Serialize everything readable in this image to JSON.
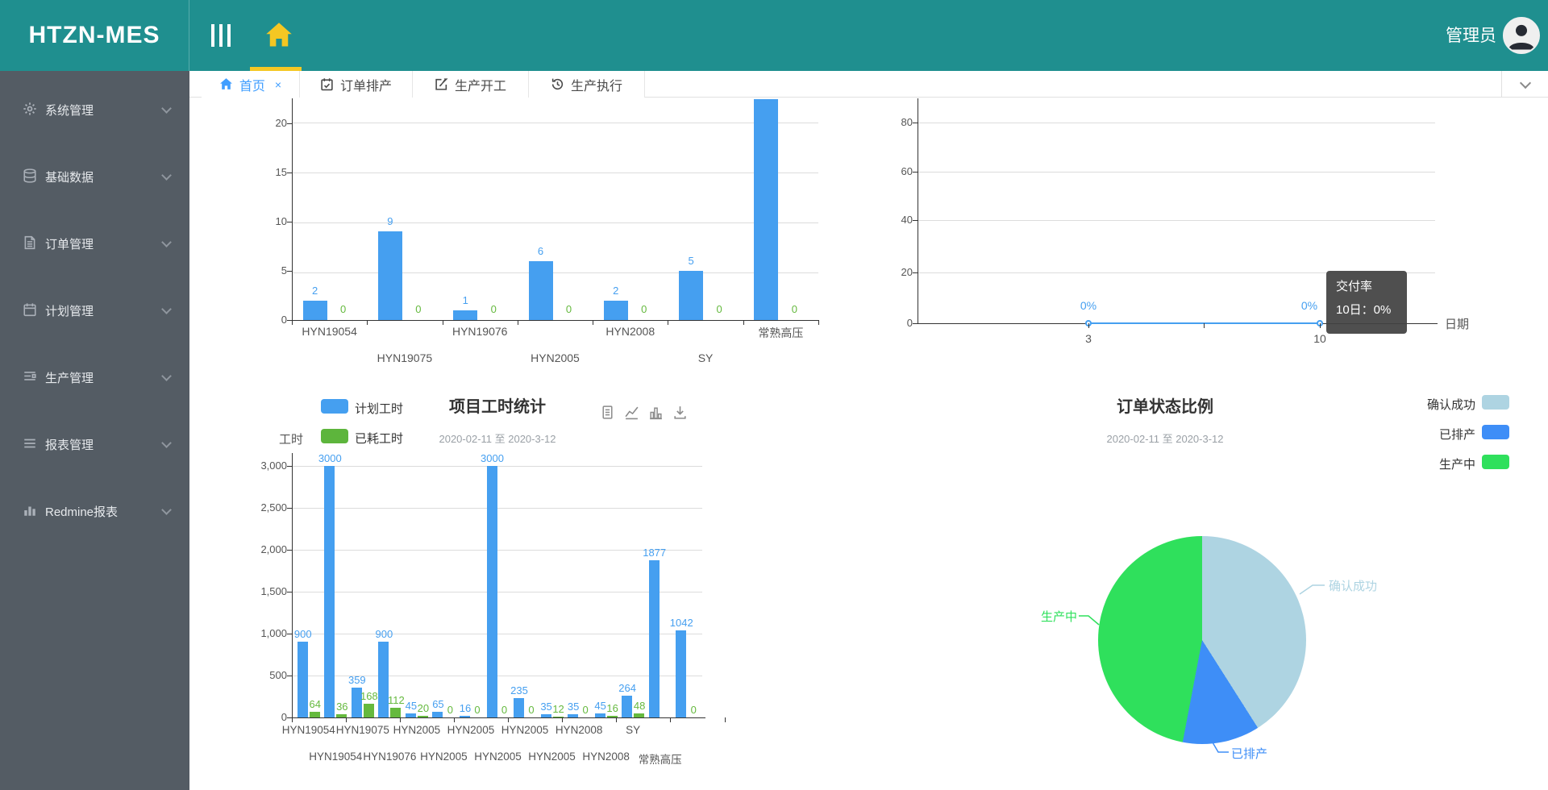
{
  "header": {
    "logo": "HTZN-MES",
    "user_name": "管理员"
  },
  "sidebar": {
    "items": [
      {
        "label": "系统管理",
        "icon": "gear-icon"
      },
      {
        "label": "基础数据",
        "icon": "database-icon"
      },
      {
        "label": "订单管理",
        "icon": "document-icon"
      },
      {
        "label": "计划管理",
        "icon": "calendar-icon"
      },
      {
        "label": "生产管理",
        "icon": "production-list-icon"
      },
      {
        "label": "报表管理",
        "icon": "report-lines-icon"
      },
      {
        "label": "Redmine报表",
        "icon": "bar-chart-icon"
      }
    ]
  },
  "tabs": {
    "close_label": "×",
    "items": [
      {
        "label": "首页",
        "active": true,
        "closable": true,
        "icon": "home-icon"
      },
      {
        "label": "订单排产",
        "icon": "calendar-check-icon"
      },
      {
        "label": "生产开工",
        "icon": "edit-icon"
      },
      {
        "label": "生产执行",
        "icon": "history-icon"
      }
    ]
  },
  "chart_data": [
    {
      "id": "project-order-bar",
      "type": "bar",
      "note": "top of plot clipped by scroll; tall last bar value not labeled (estimated)",
      "categories": [
        "HYN19054",
        "HYN19075",
        "HYN19076",
        "HYN2005",
        "HYN2008",
        "SY",
        "常熟高压"
      ],
      "series": [
        {
          "name": "blue",
          "color": "#459ff0",
          "values": [
            2,
            9,
            1,
            6,
            2,
            5,
            22.5
          ],
          "labels": [
            "2",
            "9",
            "1",
            "6",
            "2",
            "5",
            ""
          ]
        },
        {
          "name": "green",
          "color": "#65b93e",
          "values": [
            0,
            0,
            0,
            0,
            0,
            0,
            0
          ],
          "labels": [
            "0",
            "0",
            "0",
            "0",
            "0",
            "0",
            "0"
          ]
        }
      ],
      "yticks": [
        0,
        5,
        10,
        15,
        20
      ],
      "ylim": [
        0,
        20
      ],
      "grid": true
    },
    {
      "id": "delivery-rate-line",
      "type": "line",
      "line_color": "#459ff0",
      "x": [
        "3",
        "10"
      ],
      "values": [
        0,
        0
      ],
      "point_labels": [
        "0%",
        "0%"
      ],
      "yticks": [
        0,
        20,
        40,
        60,
        80
      ],
      "xlabel": "日期",
      "tooltip": {
        "title": "交付率",
        "body": "10日：0%"
      },
      "grid": true
    },
    {
      "id": "project-hours-bar",
      "type": "bar",
      "title": "项目工时统计",
      "subtitle": "2020-02-11 至 2020-3-12",
      "ylabel": "工时",
      "legend": [
        {
          "label": "计划工时",
          "color": "#459ff0"
        },
        {
          "label": "已耗工时",
          "color": "#5db53c"
        }
      ],
      "toolbox": [
        "data-view-icon",
        "line-type-icon",
        "bar-type-icon",
        "download-icon"
      ],
      "yticks": [
        "0",
        "500",
        "1,000",
        "1,500",
        "2,000",
        "2,500",
        "3,000"
      ],
      "ylim": [
        0,
        3000
      ],
      "grid": true,
      "series": [
        {
          "name": "计划工时",
          "color": "#459ff0",
          "values": [
            900,
            3000,
            359,
            900,
            45,
            65,
            16,
            3000,
            235,
            35,
            35,
            45,
            264,
            1877,
            1042
          ],
          "labels": [
            "900",
            "3000",
            "359",
            "900",
            "45",
            "65",
            "16",
            "3000",
            "235",
            "35",
            "35",
            "45",
            "264",
            "1877",
            "1042"
          ]
        },
        {
          "name": "已耗工时",
          "color": "#65b93e",
          "values": [
            64,
            36,
            168,
            112,
            20,
            0,
            0,
            0,
            0,
            12,
            0,
            16,
            48,
            0,
            0
          ],
          "labels": [
            "64",
            "36",
            "168",
            "112",
            "20",
            "0",
            "0",
            "0",
            "0",
            "12",
            "0",
            "16",
            "48",
            "",
            "0"
          ]
        }
      ],
      "xlabels_row1": [
        "HYN19054",
        "HYN19075",
        "HYN2005",
        "HYN2005",
        "HYN2005",
        "HYN2008",
        "SY"
      ],
      "xlabels_row2": [
        "HYN19054",
        "HYN19076",
        "HYN2005",
        "HYN2005",
        "HYN2005",
        "HYN2008",
        "常熟高压"
      ]
    },
    {
      "id": "order-status-pie",
      "type": "pie",
      "title": "订单状态比例",
      "subtitle": "2020-02-11 至 2020-3-12",
      "legend": [
        {
          "label": "确认成功",
          "color": "#aed4e2"
        },
        {
          "label": "已排产",
          "color": "#3e8ef7"
        },
        {
          "label": "生产中",
          "color": "#2fe05c"
        }
      ],
      "slices": [
        {
          "label": "确认成功",
          "pct": 41,
          "color": "#aed4e2"
        },
        {
          "label": "已排产",
          "pct": 12,
          "color": "#3e8ef7"
        },
        {
          "label": "生产中",
          "pct": 47,
          "color": "#2fe05c"
        }
      ]
    }
  ]
}
